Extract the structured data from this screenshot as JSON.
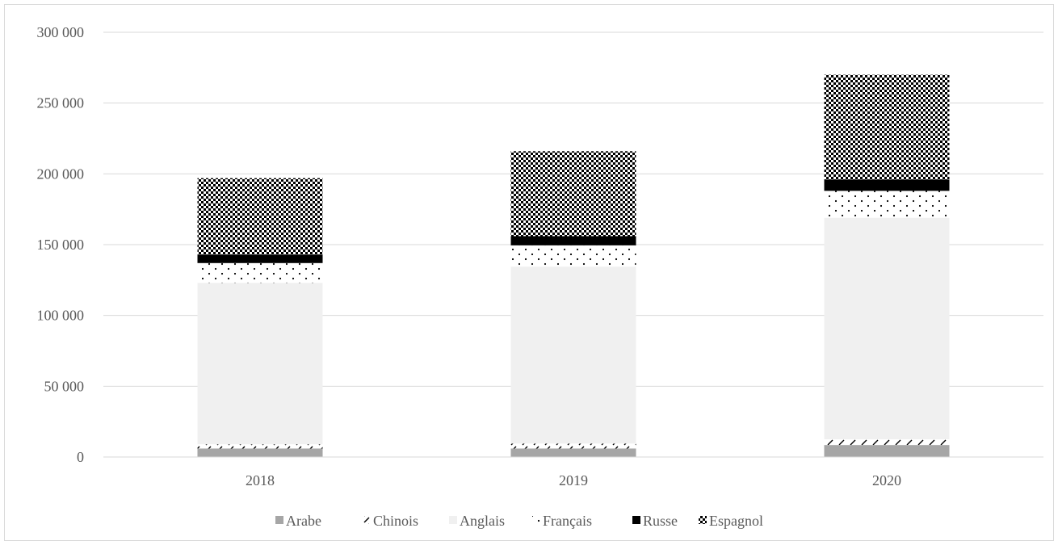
{
  "chart_data": {
    "type": "bar",
    "stacked": true,
    "categories": [
      "2018",
      "2019",
      "2020"
    ],
    "series": [
      {
        "name": "Arabe",
        "values": [
          6000,
          6000,
          8500
        ],
        "pattern": "solid-gray",
        "color": "#a6a6a6"
      },
      {
        "name": "Chinois",
        "values": [
          3000,
          3500,
          4000
        ],
        "pattern": "diagonal",
        "color": "#000000"
      },
      {
        "name": "Anglais",
        "values": [
          114000,
          125000,
          156500
        ],
        "pattern": "solid-light",
        "color": "#f0f0f0"
      },
      {
        "name": "Français",
        "values": [
          14000,
          15000,
          19000
        ],
        "pattern": "dots",
        "color": "#000000"
      },
      {
        "name": "Russe",
        "values": [
          6000,
          6500,
          8000
        ],
        "pattern": "solid-black",
        "color": "#000000"
      },
      {
        "name": "Espagnol",
        "values": [
          54000,
          60000,
          74000
        ],
        "pattern": "checker",
        "color": "#000000"
      }
    ],
    "ylim": [
      0,
      300000
    ],
    "yticks": [
      0,
      50000,
      100000,
      150000,
      200000,
      250000,
      300000
    ],
    "ytick_labels": [
      "0",
      "50 000",
      "100 000",
      "150 000",
      "200 000",
      "250 000",
      "300 000"
    ],
    "grid": true,
    "legend_position": "bottom",
    "title": "",
    "xlabel": "",
    "ylabel": ""
  }
}
